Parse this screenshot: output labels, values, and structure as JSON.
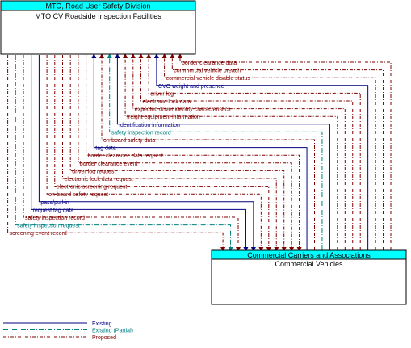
{
  "colors": {
    "existing": "#000080",
    "existing_partial": "#008080",
    "proposed": "#800000",
    "header_fill": "#00FFFF",
    "box_border": "#000000",
    "text": "#000000"
  },
  "top_box": {
    "header": "MTO, Road User Safety Division",
    "title": "MTO CV Roadside Inspection Facilities"
  },
  "bottom_box": {
    "header": "Commercial Carriers and Associations",
    "title": "Commercial Vehicles"
  },
  "flows": [
    {
      "label": "border clearance data",
      "status": "proposed",
      "direction": "up"
    },
    {
      "label": "commercial vehicle breach",
      "status": "proposed",
      "direction": "up"
    },
    {
      "label": "commercial vehicle disable status",
      "status": "proposed",
      "direction": "up"
    },
    {
      "label": "CVO weight and presence",
      "status": "existing",
      "direction": "up"
    },
    {
      "label": "driver log",
      "status": "proposed",
      "direction": "up"
    },
    {
      "label": "electronic lock data",
      "status": "proposed",
      "direction": "up"
    },
    {
      "label": "expected driver identity characteristics",
      "status": "proposed",
      "direction": "up"
    },
    {
      "label": "freight equipment information",
      "status": "proposed",
      "direction": "up"
    },
    {
      "label": "identification information",
      "status": "existing",
      "direction": "up"
    },
    {
      "label": "safety inspection record",
      "status": "existing_partial",
      "direction": "up"
    },
    {
      "label": "on-board safety data",
      "status": "proposed",
      "direction": "up"
    },
    {
      "label": "tag data",
      "status": "existing",
      "direction": "up"
    },
    {
      "label": "border clearance data request",
      "status": "proposed",
      "direction": "down"
    },
    {
      "label": "border clearance event",
      "status": "proposed",
      "direction": "down"
    },
    {
      "label": "driver log request",
      "status": "proposed",
      "direction": "down"
    },
    {
      "label": "electronic lock data request",
      "status": "proposed",
      "direction": "down"
    },
    {
      "label": "electronic screening request",
      "status": "proposed",
      "direction": "down"
    },
    {
      "label": "on-board safety request",
      "status": "proposed",
      "direction": "down"
    },
    {
      "label": "pass/pull-in",
      "status": "existing",
      "direction": "down"
    },
    {
      "label": "request tag data",
      "status": "existing",
      "direction": "down"
    },
    {
      "label": "safety inspection record",
      "status": "proposed",
      "direction": "down"
    },
    {
      "label": "safety inspection request",
      "status": "existing_partial",
      "direction": "down"
    },
    {
      "label": "screening event record",
      "status": "proposed",
      "direction": "down"
    }
  ],
  "legend": [
    {
      "label": "Existing",
      "status": "existing"
    },
    {
      "label": "Existing (Partial)",
      "status": "existing_partial"
    },
    {
      "label": "Proposed",
      "status": "proposed"
    }
  ]
}
